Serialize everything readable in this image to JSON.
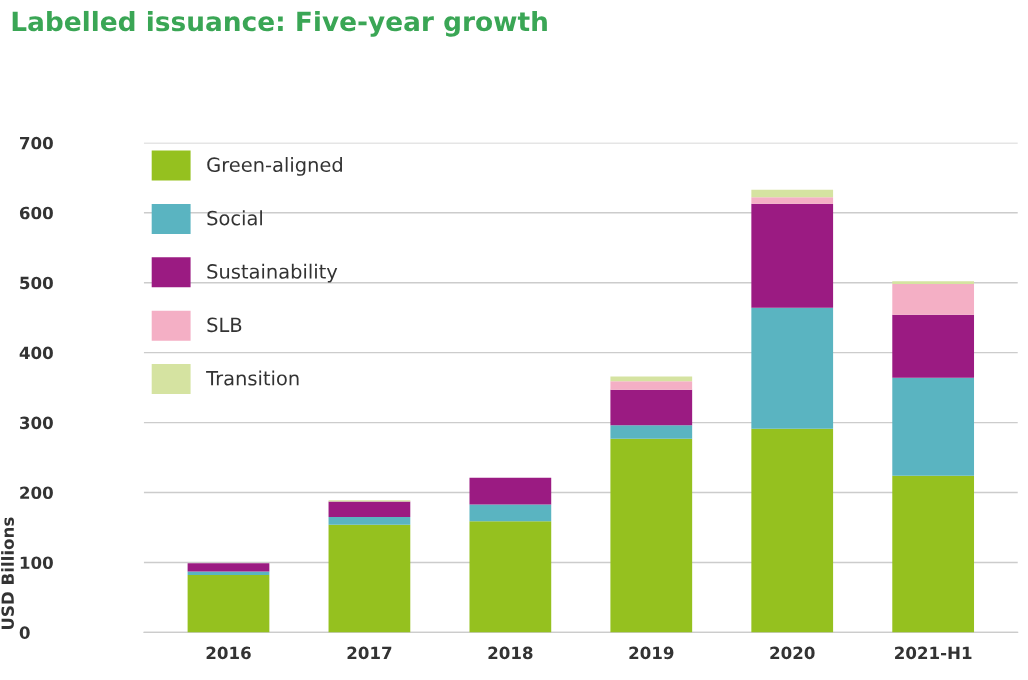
{
  "chart_data": {
    "type": "bar",
    "title": "Labelled issuance: Five-year growth",
    "ylabel": "USD Billions",
    "categories": [
      "2016",
      "2017",
      "2018",
      "2019",
      "2020",
      "2021-H1"
    ],
    "stacked": true,
    "series": [
      {
        "name": "Green-aligned",
        "color": "#95c11f",
        "values": [
          82,
          154,
          159,
          277,
          291,
          224
        ]
      },
      {
        "name": "Social",
        "color": "#5ab4c1",
        "values": [
          5,
          11,
          24,
          19,
          173,
          140
        ]
      },
      {
        "name": "Sustainability",
        "color": "#9b1b82",
        "values": [
          12,
          22,
          38,
          51,
          149,
          90
        ]
      },
      {
        "name": "SLB",
        "color": "#f4afc5",
        "values": [
          0,
          0,
          0,
          12,
          9,
          44
        ]
      },
      {
        "name": "Transition",
        "color": "#d5e3a1",
        "values": [
          0,
          2,
          0,
          7,
          11,
          4
        ]
      }
    ],
    "ylim": [
      0,
      700
    ],
    "yticks": [
      0,
      100,
      200,
      300,
      400,
      500,
      600,
      700
    ],
    "grid": "y",
    "legend": "top left"
  }
}
